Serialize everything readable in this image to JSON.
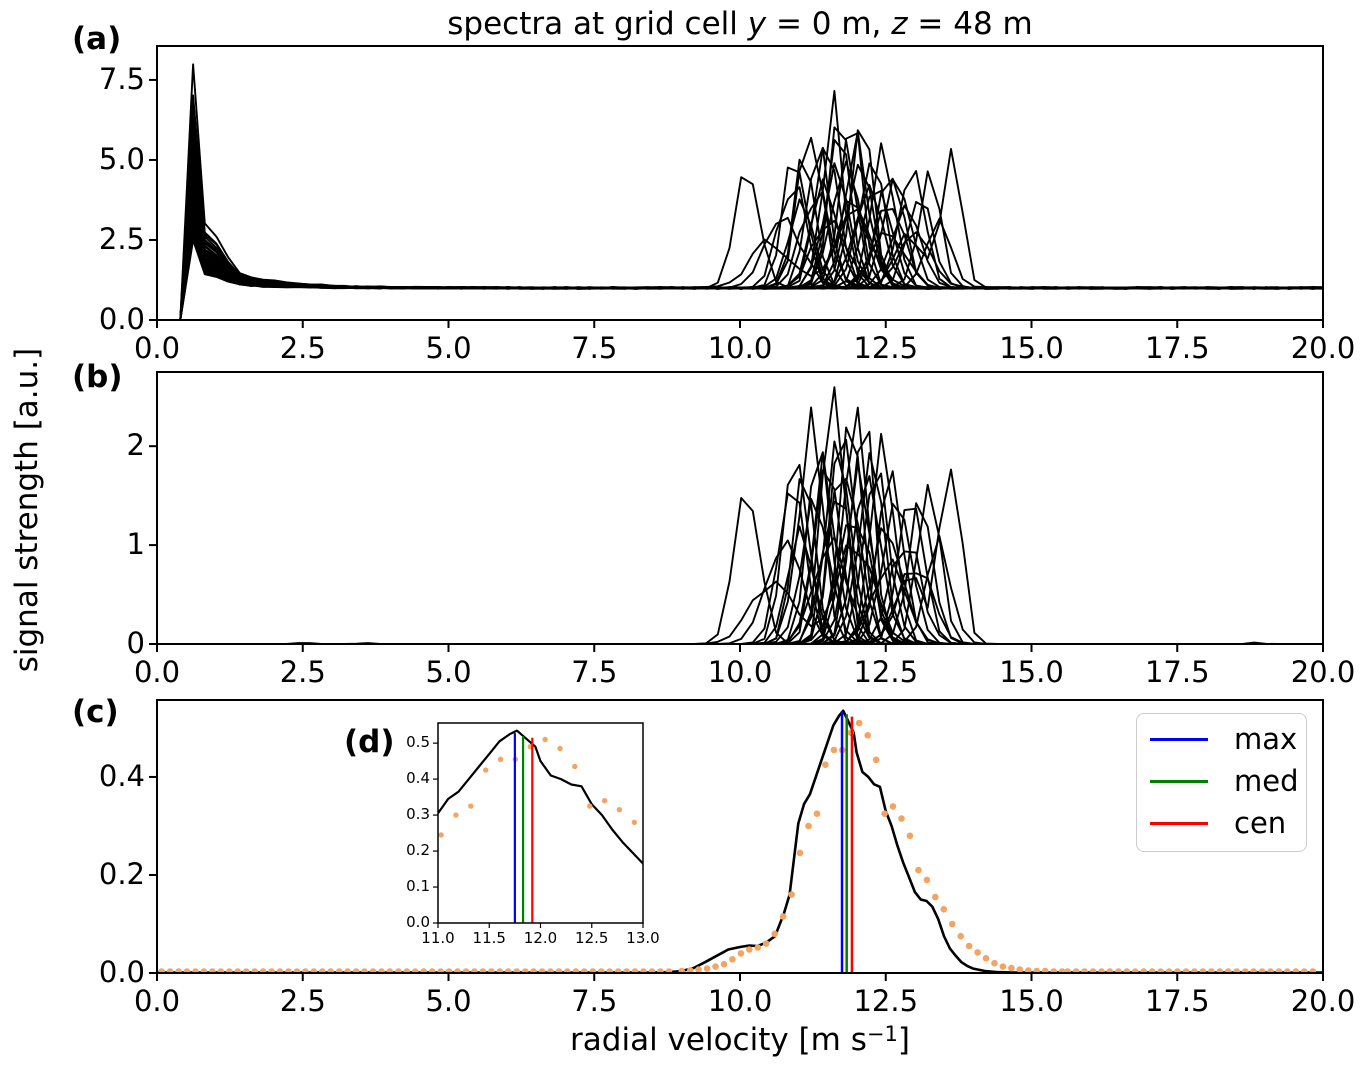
{
  "figure": {
    "title_parts": {
      "p1": "spectra at grid cell ",
      "var1": "y",
      "p2": " = 0 m, ",
      "var2": "z",
      "p3": " = 48 m"
    },
    "ylabel": "signal strength [a.u.]",
    "xlabel_parts": {
      "p1": "radial velocity [m s",
      "sup": "−1",
      "p2": "]"
    },
    "panel_labels": {
      "a": "(a)",
      "b": "(b)",
      "c": "(c)",
      "d": "(d)"
    }
  },
  "legend": {
    "items": [
      {
        "label": "max",
        "color": "#0000ff"
      },
      {
        "label": "med",
        "color": "#008000"
      },
      {
        "label": "cen",
        "color": "#ff0000"
      }
    ]
  },
  "chart_data": [
    {
      "id": "a",
      "type": "line",
      "xlim": [
        0,
        20
      ],
      "ylim": [
        0,
        8.56
      ],
      "xtick_values": [
        0,
        2.5,
        5,
        7.5,
        10,
        12.5,
        15,
        17.5,
        20
      ],
      "xtick_labels": [
        "0.0",
        "2.5",
        "5.0",
        "7.5",
        "10.0",
        "12.5",
        "15.0",
        "17.5",
        "20.0"
      ],
      "ytick_values": [
        0,
        2.5,
        5,
        7.5
      ],
      "ytick_labels": [
        "0.0",
        "2.5",
        "5.0",
        "7.5"
      ],
      "line_color": "#000000",
      "noise_floor": 1.0,
      "turb_amp_scale": 2.2,
      "leak_center": 0.62,
      "spectra": [
        {
          "c": 10.12,
          "a": 1.55,
          "w": 0.3,
          "leak": 2.0
        },
        {
          "c": 10.55,
          "a": 0.65,
          "w": 0.5,
          "leak": 3.0,
          "c2": 11.95,
          "a2": 1.05,
          "w2": 0.45
        },
        {
          "c": 10.75,
          "a": 1.05,
          "w": 0.42,
          "leak": 1.5
        },
        {
          "c": 10.9,
          "a": 1.5,
          "w": 0.32,
          "leak": 2.5
        },
        {
          "c": 10.95,
          "a": 2.0,
          "w": 0.28,
          "leak": 4.0,
          "c2": 12.55,
          "a2": 0.85,
          "w2": 0.4
        },
        {
          "c": 11.05,
          "a": 1.25,
          "w": 0.3,
          "leak": 1.8
        },
        {
          "c": 11.1,
          "a": 1.8,
          "w": 0.26,
          "leak": 5.0
        },
        {
          "c": 11.2,
          "a": 2.1,
          "w": 0.3,
          "leak": 2.8
        },
        {
          "c": 11.3,
          "a": 1.4,
          "w": 0.34,
          "leak": 6.0,
          "c2": 13.0,
          "a2": 0.8,
          "w2": 0.4
        },
        {
          "c": 11.35,
          "a": 2.3,
          "w": 0.26,
          "leak": 3.5
        },
        {
          "c": 11.45,
          "a": 1.7,
          "w": 0.3,
          "leak": 2.2
        },
        {
          "c": 11.5,
          "a": 2.2,
          "w": 0.28,
          "leak": 4.5
        },
        {
          "c": 11.55,
          "a": 1.05,
          "w": 0.4,
          "leak": 1.6
        },
        {
          "c": 11.6,
          "a": 2.45,
          "w": 0.26,
          "leak": 5.5
        },
        {
          "c": 11.65,
          "a": 1.6,
          "w": 0.32,
          "leak": 3.0
        },
        {
          "c": 11.7,
          "a": 2.2,
          "w": 0.28,
          "leak": 7.0
        },
        {
          "c": 11.75,
          "a": 2.6,
          "w": 0.27,
          "leak": 4.2
        },
        {
          "c": 11.8,
          "a": 1.9,
          "w": 0.33,
          "leak": 2.6
        },
        {
          "c": 11.9,
          "a": 2.35,
          "w": 0.27,
          "leak": 5.8
        },
        {
          "c": 11.95,
          "a": 1.35,
          "w": 0.38,
          "leak": 2.1
        },
        {
          "c": 12.0,
          "a": 2.1,
          "w": 0.3,
          "leak": 3.8
        },
        {
          "c": 12.05,
          "a": 1.75,
          "w": 0.3,
          "leak": 1.9
        },
        {
          "c": 12.1,
          "a": 2.3,
          "w": 0.27,
          "leak": 4.8
        },
        {
          "c": 12.2,
          "a": 1.55,
          "w": 0.34,
          "leak": 2.4
        },
        {
          "c": 12.25,
          "a": 2.0,
          "w": 0.3,
          "leak": 3.2
        },
        {
          "c": 12.35,
          "a": 1.65,
          "w": 0.32,
          "leak": 5.2
        },
        {
          "c": 12.45,
          "a": 2.15,
          "w": 0.28,
          "leak": 2.9
        },
        {
          "c": 12.55,
          "a": 1.25,
          "w": 0.36,
          "leak": 1.7
        },
        {
          "c": 12.6,
          "a": 1.8,
          "w": 0.3,
          "leak": 4.4
        },
        {
          "c": 12.7,
          "a": 1.45,
          "w": 0.33,
          "leak": 2.3
        },
        {
          "c": 12.85,
          "a": 1.05,
          "w": 0.36,
          "leak": 3.6
        },
        {
          "c": 12.95,
          "a": 1.6,
          "w": 0.3,
          "leak": 2.0
        },
        {
          "c": 13.1,
          "a": 1.35,
          "w": 0.3,
          "leak": 4.1
        },
        {
          "c": 13.25,
          "a": 1.5,
          "w": 0.28,
          "leak": 2.7
        },
        {
          "c": 13.4,
          "a": 0.95,
          "w": 0.3,
          "leak": 1.9
        },
        {
          "c": 13.62,
          "a": 1.9,
          "w": 0.24,
          "leak": 3.3,
          "c2": 12.9,
          "a2": 0.7,
          "w2": 0.35
        }
      ]
    },
    {
      "id": "b",
      "type": "line",
      "xlim": [
        0,
        20
      ],
      "ylim": [
        0,
        2.75
      ],
      "xtick_values": [
        0,
        2.5,
        5,
        7.5,
        10,
        12.5,
        15,
        17.5,
        20
      ],
      "xtick_labels": [
        "0.0",
        "2.5",
        "5.0",
        "7.5",
        "10.0",
        "12.5",
        "15.0",
        "17.5",
        "20.0"
      ],
      "ytick_values": [
        0,
        1,
        2
      ],
      "ytick_labels": [
        "0",
        "1",
        "2"
      ],
      "line_color": "#000000",
      "spectra_ref": "a",
      "extra_bumps": [
        {
          "x": 2.52,
          "a": 0.018,
          "w": 0.12
        },
        {
          "x": 3.55,
          "a": 0.015,
          "w": 0.1
        },
        {
          "x": 18.85,
          "a": 0.015,
          "w": 0.12
        }
      ]
    },
    {
      "id": "c",
      "type": "line+scatter",
      "xlim": [
        0,
        20
      ],
      "ylim": [
        0,
        0.557
      ],
      "xtick_values": [
        0,
        2.5,
        5,
        7.5,
        10,
        12.5,
        15,
        17.5,
        20
      ],
      "xtick_labels": [
        "0.0",
        "2.5",
        "5.0",
        "7.5",
        "10.0",
        "12.5",
        "15.0",
        "17.5",
        "20.0"
      ],
      "ytick_values": [
        0,
        0.2,
        0.4
      ],
      "ytick_labels": [
        "0.0",
        "0.2",
        "0.4"
      ],
      "line_color": "#000000",
      "line": {
        "x": [
          0.0,
          8.5,
          8.8,
          9.0,
          9.2,
          9.4,
          9.6,
          9.8,
          10.0,
          10.15,
          10.3,
          10.45,
          10.6,
          10.75,
          10.85,
          11.0,
          11.1,
          11.2,
          11.3,
          11.4,
          11.5,
          11.6,
          11.7,
          11.77,
          11.85,
          11.95,
          12.0,
          12.1,
          12.2,
          12.3,
          12.4,
          12.5,
          12.6,
          12.7,
          12.8,
          12.9,
          13.0,
          13.1,
          13.2,
          13.3,
          13.4,
          13.5,
          13.6,
          13.7,
          13.8,
          13.9,
          14.0,
          14.2,
          14.4,
          14.7,
          15.0,
          20.0
        ],
        "y": [
          0.001,
          0.001,
          0.002,
          0.004,
          0.01,
          0.022,
          0.035,
          0.048,
          0.053,
          0.056,
          0.055,
          0.062,
          0.075,
          0.12,
          0.16,
          0.305,
          0.345,
          0.365,
          0.4,
          0.435,
          0.47,
          0.505,
          0.525,
          0.535,
          0.515,
          0.49,
          0.45,
          0.41,
          0.4,
          0.385,
          0.38,
          0.33,
          0.3,
          0.26,
          0.225,
          0.195,
          0.165,
          0.15,
          0.147,
          0.135,
          0.11,
          0.075,
          0.05,
          0.035,
          0.022,
          0.014,
          0.009,
          0.004,
          0.002,
          0.001,
          0.001,
          0.001
        ]
      },
      "dots": {
        "color": "#F4A460",
        "x": [
          9.0,
          9.145,
          9.29,
          9.435,
          9.58,
          9.725,
          9.87,
          10.015,
          10.16,
          10.305,
          10.45,
          10.595,
          10.74,
          10.885,
          11.03,
          11.175,
          11.32,
          11.465,
          11.61,
          11.755,
          11.9,
          12.045,
          12.19,
          12.335,
          12.48,
          12.625,
          12.77,
          12.915,
          13.06,
          13.205,
          13.35,
          13.495,
          13.64,
          13.785,
          13.93,
          14.075,
          14.22,
          14.365,
          14.51,
          14.655,
          14.8,
          14.945,
          15.09,
          15.235,
          15.38,
          15.525
        ],
        "y": [
          0.004,
          0.005,
          0.007,
          0.009,
          0.013,
          0.018,
          0.028,
          0.04,
          0.048,
          0.052,
          0.06,
          0.08,
          0.115,
          0.16,
          0.245,
          0.3,
          0.325,
          0.425,
          0.455,
          0.455,
          0.49,
          0.51,
          0.485,
          0.435,
          0.325,
          0.34,
          0.315,
          0.28,
          0.21,
          0.19,
          0.155,
          0.13,
          0.1,
          0.075,
          0.055,
          0.042,
          0.03,
          0.02,
          0.013,
          0.01,
          0.007,
          0.005,
          0.004,
          0.004,
          0.003,
          0.003
        ],
        "baseline": {
          "ranges": [
            [
              0.08,
              8.9
            ],
            [
              15.62,
              19.95
            ]
          ],
          "step": 0.145,
          "y": 0.003
        }
      },
      "vlines": [
        {
          "label": "max",
          "x": 11.75,
          "top": 0.534,
          "color": "#0000ff"
        },
        {
          "label": "med",
          "x": 11.83,
          "top": 0.528,
          "color": "#008000"
        },
        {
          "label": "cen",
          "x": 11.92,
          "top": 0.523,
          "color": "#ff0000"
        }
      ]
    },
    {
      "id": "d",
      "type": "inset line+scatter",
      "xlim": [
        11,
        13
      ],
      "ylim": [
        0,
        0.556
      ],
      "xtick_values": [
        11,
        11.5,
        12,
        12.5,
        13
      ],
      "xtick_labels": [
        "11.0",
        "11.5",
        "12.0",
        "12.5",
        "13.0"
      ],
      "ytick_values": [
        0,
        0.1,
        0.2,
        0.3,
        0.4,
        0.5
      ],
      "ytick_labels": [
        "0.0",
        "0.1",
        "0.2",
        "0.3",
        "0.4",
        "0.5"
      ],
      "data_ref": "c",
      "vline_tops": [
        0.528,
        0.52,
        0.515
      ]
    }
  ]
}
